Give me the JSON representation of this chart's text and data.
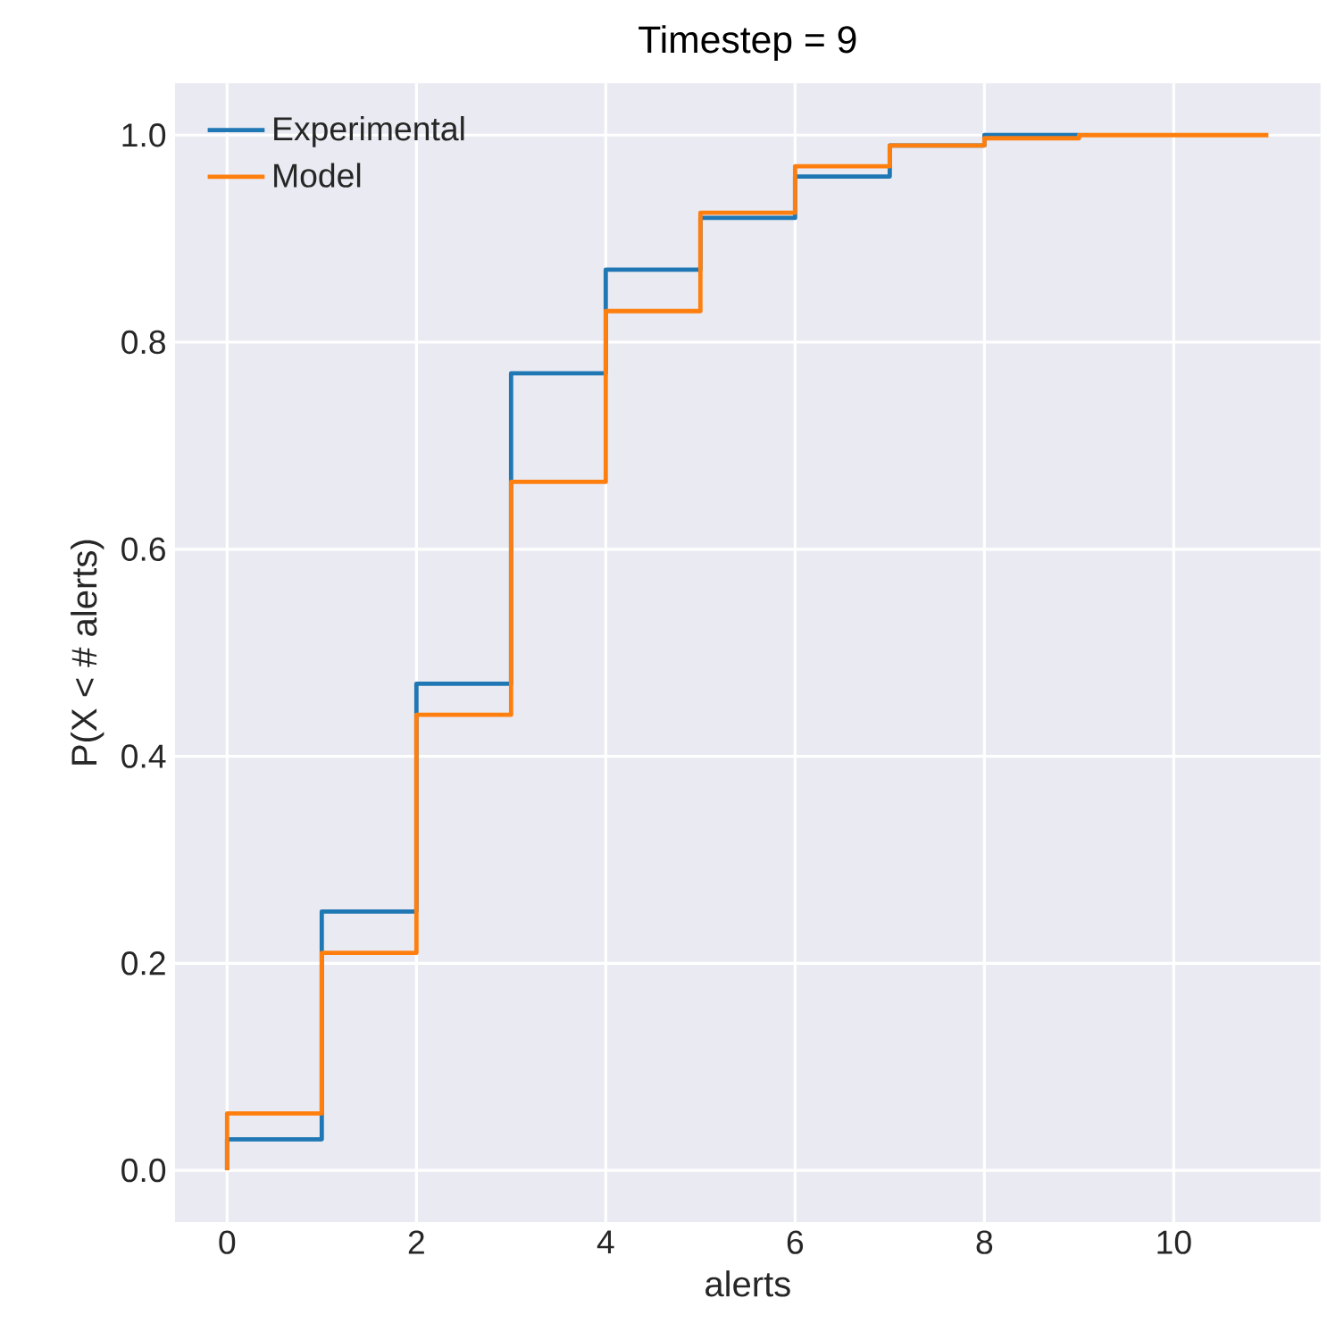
{
  "chart_data": {
    "type": "step",
    "title": "Timestep = 9",
    "xlabel": "alerts",
    "ylabel": "P(X < # alerts)",
    "x": [
      0,
      0,
      1,
      2,
      3,
      4,
      5,
      6,
      7,
      8,
      9,
      10,
      11
    ],
    "series": [
      {
        "name": "Experimental",
        "color": "#1f77b4",
        "values": [
          0,
          0.03,
          0.25,
          0.47,
          0.77,
          0.87,
          0.92,
          0.96,
          0.99,
          1.0,
          1.0,
          null,
          null
        ]
      },
      {
        "name": "Model",
        "color": "#ff7f0e",
        "values": [
          0,
          0.055,
          0.21,
          0.44,
          0.665,
          0.83,
          0.925,
          0.97,
          0.99,
          0.997,
          1.0,
          1.0,
          1.0
        ]
      }
    ],
    "xlim": [
      -0.55,
      11.55
    ],
    "ylim": [
      -0.05,
      1.05
    ],
    "xticks": [
      0,
      2,
      4,
      6,
      8,
      10
    ],
    "yticks": [
      {
        "value": 0,
        "label": "0.0"
      },
      {
        "value": 0.2,
        "label": "0.2"
      },
      {
        "value": 0.4,
        "label": "0.4"
      },
      {
        "value": 0.6,
        "label": "0.6"
      },
      {
        "value": 0.8,
        "label": "0.8"
      },
      {
        "value": 1.0,
        "label": "1.0"
      }
    ],
    "grid": true,
    "legend": "top left",
    "marker": "none",
    "line_style": "solid"
  }
}
